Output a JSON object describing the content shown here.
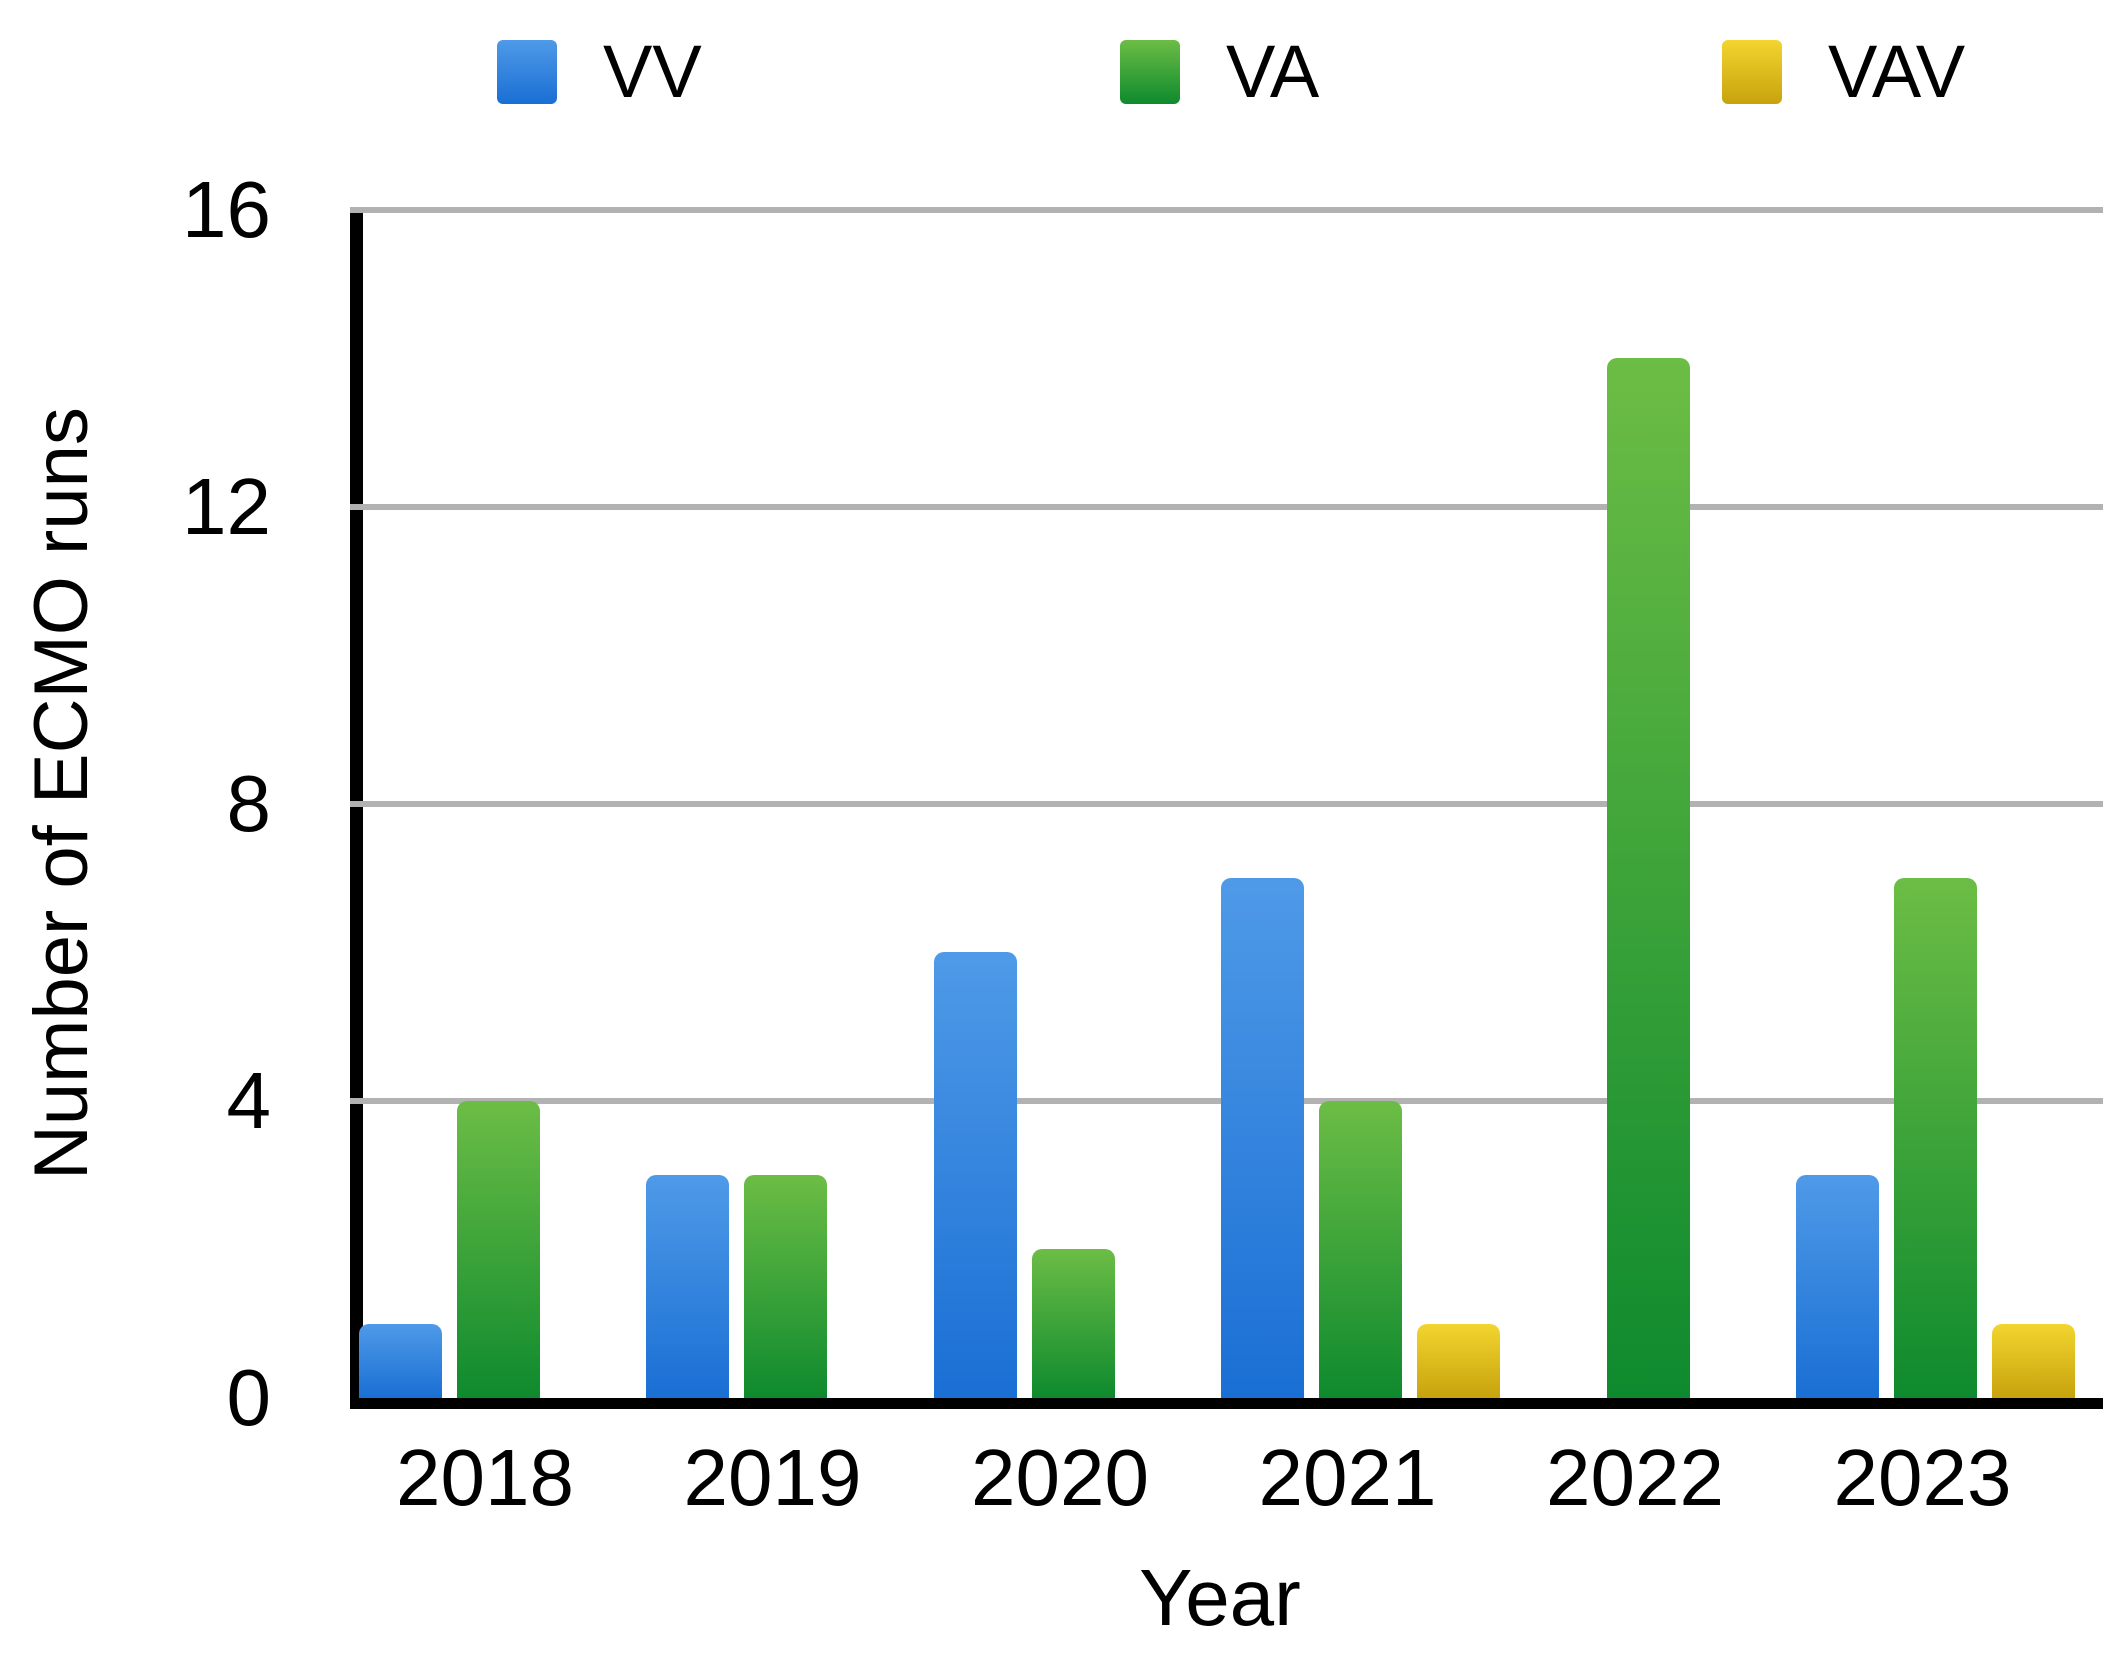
{
  "chart_data": {
    "type": "bar",
    "title": "",
    "xlabel": "Year",
    "ylabel": "Number of ECMO runs",
    "categories": [
      "2018",
      "2019",
      "2020",
      "2021",
      "2022",
      "2023"
    ],
    "series": [
      {
        "name": "VV",
        "color_top": "#4f9ae8",
        "color_bottom": "#1a6fd4",
        "values": [
          1,
          3,
          6,
          7,
          0,
          3
        ]
      },
      {
        "name": "VA",
        "color_top": "#6cbd45",
        "color_bottom": "#0e8a2e",
        "values": [
          4,
          3,
          2,
          4,
          14,
          7
        ]
      },
      {
        "name": "VAV",
        "color_top": "#f2d52f",
        "color_bottom": "#c7a30d",
        "values": [
          0,
          0,
          0,
          1,
          0,
          1
        ]
      }
    ],
    "ylim": [
      0,
      16
    ],
    "yticks": [
      0,
      4,
      8,
      12,
      16
    ],
    "grid": true,
    "gridline_color": "#b2b2b2",
    "axis_color": "#000000",
    "legend_position": "top",
    "legend_items": [
      "VV",
      "VA",
      "VAV"
    ]
  }
}
